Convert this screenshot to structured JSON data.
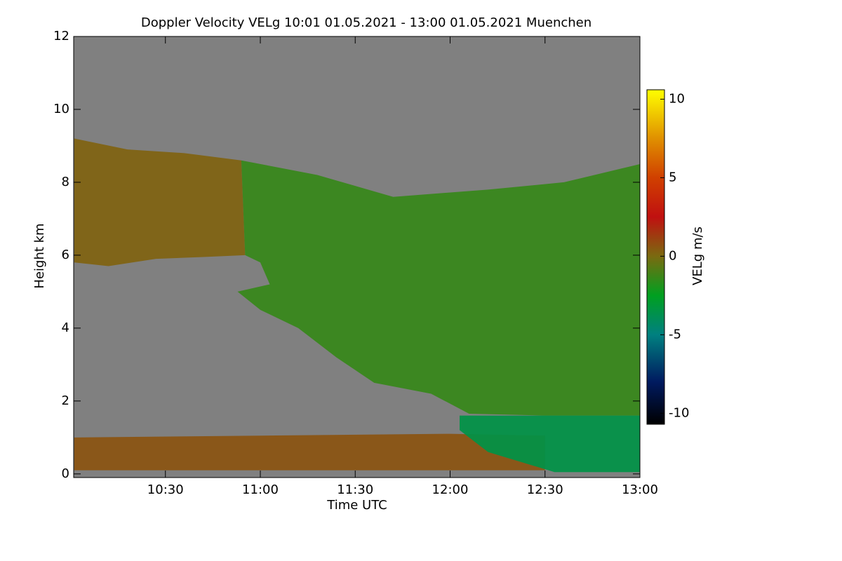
{
  "chart_data": {
    "type": "velocity-field",
    "title": "Doppler Velocity VELg   10:01 01.05.2021 - 13:00 01.05.2021 Muenchen",
    "x_label": "Time UTC",
    "y_label": "Height km",
    "colorbar_label": "VELg m/s",
    "background": "#808080",
    "xlim": [
      10.0167,
      13.0
    ],
    "xticks": [
      {
        "value": 10.5,
        "label": "10:30"
      },
      {
        "value": 11.0,
        "label": "11:00"
      },
      {
        "value": 11.5,
        "label": "11:30"
      },
      {
        "value": 12.0,
        "label": "12:00"
      },
      {
        "value": 12.5,
        "label": "12:30"
      },
      {
        "value": 13.0,
        "label": "13:00"
      }
    ],
    "ylim": [
      -0.1,
      12
    ],
    "yticks": [
      0,
      2,
      4,
      6,
      8,
      10,
      12
    ],
    "clim": [
      -10.7,
      10.6
    ],
    "cticks": [
      -10,
      -5,
      0,
      5,
      10
    ],
    "colormap": [
      {
        "value": -10.7,
        "color": "#000000"
      },
      {
        "value": -8,
        "color": "#001a60"
      },
      {
        "value": -5,
        "color": "#008080"
      },
      {
        "value": -2.5,
        "color": "#00a020"
      },
      {
        "value": 0,
        "color": "#7a6a10"
      },
      {
        "value": 2.5,
        "color": "#c01010"
      },
      {
        "value": 5,
        "color": "#d04000"
      },
      {
        "value": 7.5,
        "color": "#e09000"
      },
      {
        "value": 10.6,
        "color": "#ffff00"
      }
    ],
    "regions": [
      {
        "value": 0.2,
        "x": [
          10.02,
          10.3,
          10.6,
          10.9,
          10.92,
          10.7,
          10.45,
          10.2,
          10.02
        ],
        "y": [
          9.2,
          8.9,
          8.8,
          8.6,
          6.0,
          5.95,
          5.9,
          5.7,
          5.8
        ]
      },
      {
        "value": -1.4,
        "x": [
          10.9,
          11.3,
          11.7,
          12.2,
          12.6,
          13.0,
          13.0,
          12.5,
          12.1,
          11.9,
          11.6,
          11.4,
          11.2,
          11.0,
          10.88,
          11.05,
          11.0,
          10.92
        ],
        "y": [
          8.6,
          8.2,
          7.6,
          7.8,
          8.0,
          8.5,
          1.6,
          1.6,
          1.65,
          2.2,
          2.5,
          3.2,
          4.0,
          4.5,
          5.0,
          5.2,
          5.8,
          6.0
        ]
      },
      {
        "value": 0.6,
        "x": [
          10.02,
          11.0,
          12.0,
          12.5,
          12.5,
          11.0,
          10.02
        ],
        "y": [
          1.0,
          1.05,
          1.1,
          1.05,
          0.1,
          0.1,
          0.1
        ]
      },
      {
        "value": -3.5,
        "x": [
          12.05,
          13.0,
          13.0,
          12.55,
          12.2,
          12.05
        ],
        "y": [
          1.6,
          1.6,
          0.05,
          0.05,
          0.6,
          1.2
        ]
      }
    ]
  }
}
